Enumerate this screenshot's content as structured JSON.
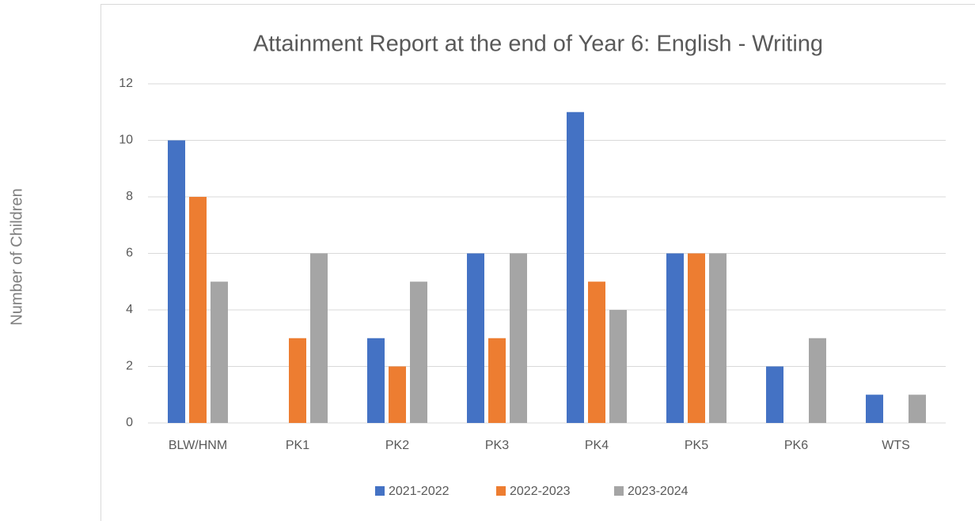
{
  "chart_data": {
    "type": "bar",
    "title": "Attainment Report at the end of Year 6: English - Writing",
    "y_label": "Number of Children",
    "categories": [
      "BLW/HNM",
      "PK1",
      "PK2",
      "PK3",
      "PK4",
      "PK5",
      "PK6",
      "WTS"
    ],
    "series": [
      {
        "name": "2021-2022",
        "color": "#4472c4",
        "values": [
          10,
          0,
          3,
          6,
          11,
          6,
          2,
          1
        ]
      },
      {
        "name": "2022-2023",
        "color": "#ed7d31",
        "values": [
          8,
          3,
          2,
          3,
          5,
          6,
          0,
          0
        ]
      },
      {
        "name": "2023-2024",
        "color": "#a5a5a5",
        "values": [
          5,
          6,
          5,
          6,
          4,
          6,
          3,
          1
        ]
      }
    ],
    "ylim": [
      0,
      12
    ],
    "yticks": [
      0,
      2,
      4,
      6,
      8,
      10,
      12
    ],
    "grid": true,
    "legend": "bottom"
  }
}
